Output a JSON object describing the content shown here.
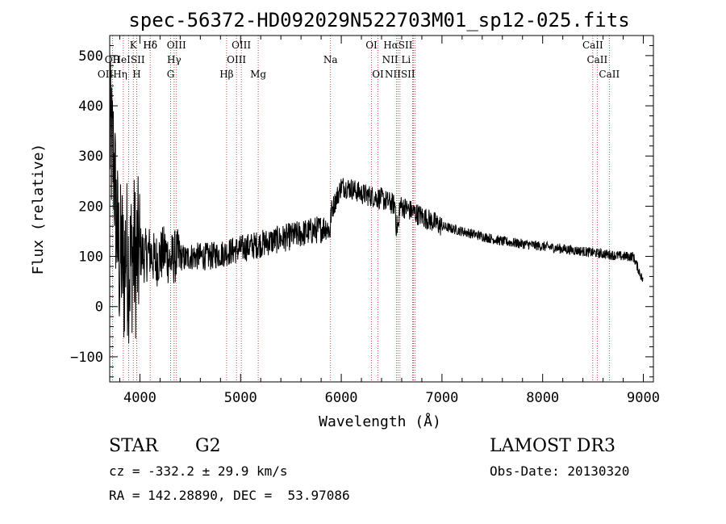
{
  "chart_data": {
    "type": "line",
    "title": "spec-56372-HD092029N522703M01_sp12-025.fits",
    "xlabel": "Wavelength (Å)",
    "ylabel": "Flux (relative)",
    "xlim": [
      3700,
      9100
    ],
    "ylim": [
      -150,
      540
    ],
    "xticks": [
      4000,
      5000,
      6000,
      7000,
      8000,
      9000
    ],
    "yticks": [
      -100,
      0,
      100,
      200,
      300,
      400,
      500
    ],
    "series": [
      {
        "name": "flux",
        "x": [
          3700,
          3740,
          3760,
          3780,
          3800,
          3820,
          3840,
          3860,
          3880,
          3900,
          3920,
          3940,
          3960,
          3980,
          4000,
          4050,
          4100,
          4150,
          4200,
          4250,
          4300,
          4350,
          4400,
          4450,
          4500,
          4600,
          4700,
          4800,
          4900,
          5000,
          5100,
          5200,
          5300,
          5400,
          5500,
          5600,
          5700,
          5800,
          5850,
          5890,
          5900,
          6000,
          6100,
          6200,
          6300,
          6400,
          6500,
          6560,
          6600,
          6700,
          6800,
          6900,
          7000,
          7200,
          7400,
          7600,
          7800,
          8000,
          8200,
          8400,
          8600,
          8800,
          8900,
          9000
        ],
        "values": [
          340,
          290,
          200,
          130,
          80,
          110,
          60,
          120,
          90,
          80,
          100,
          110,
          90,
          100,
          110,
          100,
          110,
          90,
          100,
          110,
          90,
          100,
          100,
          95,
          100,
          100,
          100,
          105,
          110,
          115,
          120,
          125,
          130,
          135,
          140,
          145,
          150,
          155,
          160,
          150,
          190,
          240,
          235,
          225,
          220,
          215,
          205,
          200,
          200,
          190,
          180,
          170,
          160,
          150,
          140,
          130,
          125,
          120,
          115,
          110,
          105,
          100,
          100,
          50
        ]
      }
    ],
    "spectral_lines": [
      {
        "label": "Hδ",
        "x": 4102,
        "row": 1
      },
      {
        "label": "K",
        "x": 3934,
        "row": 1
      },
      {
        "label": "Hδ",
        "x": 4102,
        "row": 1
      },
      {
        "label": "OIII",
        "x": 4363,
        "row": 1
      },
      {
        "label": "OIII",
        "x": 5007,
        "row": 1
      },
      {
        "label": "OI",
        "x": 6300,
        "row": 1
      },
      {
        "label": "HαSII",
        "x": 6563,
        "row": 1
      },
      {
        "label": "CaII",
        "x": 8498,
        "row": 1
      },
      {
        "label": "OII",
        "x": 3727,
        "row": 2
      },
      {
        "label": "HeISII",
        "x": 3889,
        "row": 2
      },
      {
        "label": "Hγ",
        "x": 4340,
        "row": 2
      },
      {
        "label": "OIII",
        "x": 4959,
        "row": 2
      },
      {
        "label": "Na",
        "x": 5893,
        "row": 2
      },
      {
        "label": "NII Li",
        "x": 6548,
        "row": 2
      },
      {
        "label": "CaII",
        "x": 8542,
        "row": 2
      },
      {
        "label": "OIIHη",
        "x": 3727,
        "row": 3
      },
      {
        "label": "H",
        "x": 3968,
        "row": 3
      },
      {
        "label": "G",
        "x": 4305,
        "row": 3
      },
      {
        "label": "Hβ",
        "x": 4861,
        "row": 3
      },
      {
        "label": "Mg",
        "x": 5175,
        "row": 3
      },
      {
        "label": "OI",
        "x": 6364,
        "row": 3
      },
      {
        "label": "NIISII",
        "x": 6583,
        "row": 3
      },
      {
        "label": "CaII",
        "x": 8662,
        "row": 3
      }
    ],
    "line_positions": [
      3727,
      3835,
      3889,
      3934,
      3968,
      4102,
      4305,
      4340,
      4363,
      4861,
      4959,
      5007,
      5175,
      5893,
      6300,
      6364,
      6548,
      6563,
      6583,
      6708,
      6716,
      6731,
      8498,
      8542,
      8662
    ]
  },
  "info": {
    "object_class": "STAR",
    "subclass": "G2",
    "survey": "LAMOST DR3",
    "cz": "cz = -332.2 ± 29.9 km/s",
    "obs_date": "Obs-Date: 20130320",
    "coords": "RA = 142.28890, DEC =  53.97086"
  },
  "colors": {
    "spectrum": "#000000",
    "line_markers": "#b22222",
    "axes": "#000000"
  }
}
